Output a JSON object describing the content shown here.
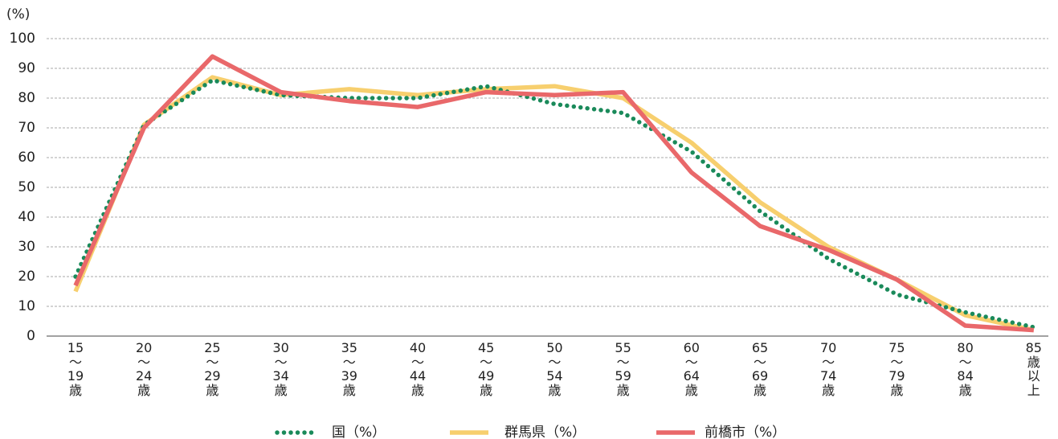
{
  "chart_data": {
    "type": "line",
    "y_label": "(%)",
    "categories": [
      "15～19歳",
      "20～24歳",
      "25～29歳",
      "30～34歳",
      "35～39歳",
      "40～44歳",
      "45～49歳",
      "50～54歳",
      "55～59歳",
      "60～64歳",
      "65～69歳",
      "70～74歳",
      "75～79歳",
      "80～84歳",
      "85歳以上"
    ],
    "series": [
      {
        "name": "国（%）",
        "color": "#1a8a5a",
        "style": "dotted",
        "values": [
          20,
          71,
          86,
          81,
          80,
          80,
          84,
          78,
          75,
          62,
          42,
          26,
          14,
          8,
          3
        ]
      },
      {
        "name": "群馬県（%）",
        "color": "#f7cf6e",
        "style": "solid",
        "values": [
          15,
          71,
          87,
          81,
          83,
          81,
          83,
          84,
          80,
          65,
          45,
          30,
          19,
          7,
          2
        ]
      },
      {
        "name": "前橋市（%）",
        "color": "#e9686a",
        "style": "solid",
        "values": [
          17,
          70,
          94,
          82,
          79,
          77,
          82,
          81,
          82,
          55,
          37,
          29,
          19,
          3.5,
          2
        ]
      }
    ],
    "ylim": [
      0,
      100
    ],
    "yticks": [
      0,
      10,
      20,
      30,
      40,
      50,
      60,
      70,
      80,
      90,
      100
    ],
    "grid": true,
    "legend": "bottom"
  }
}
